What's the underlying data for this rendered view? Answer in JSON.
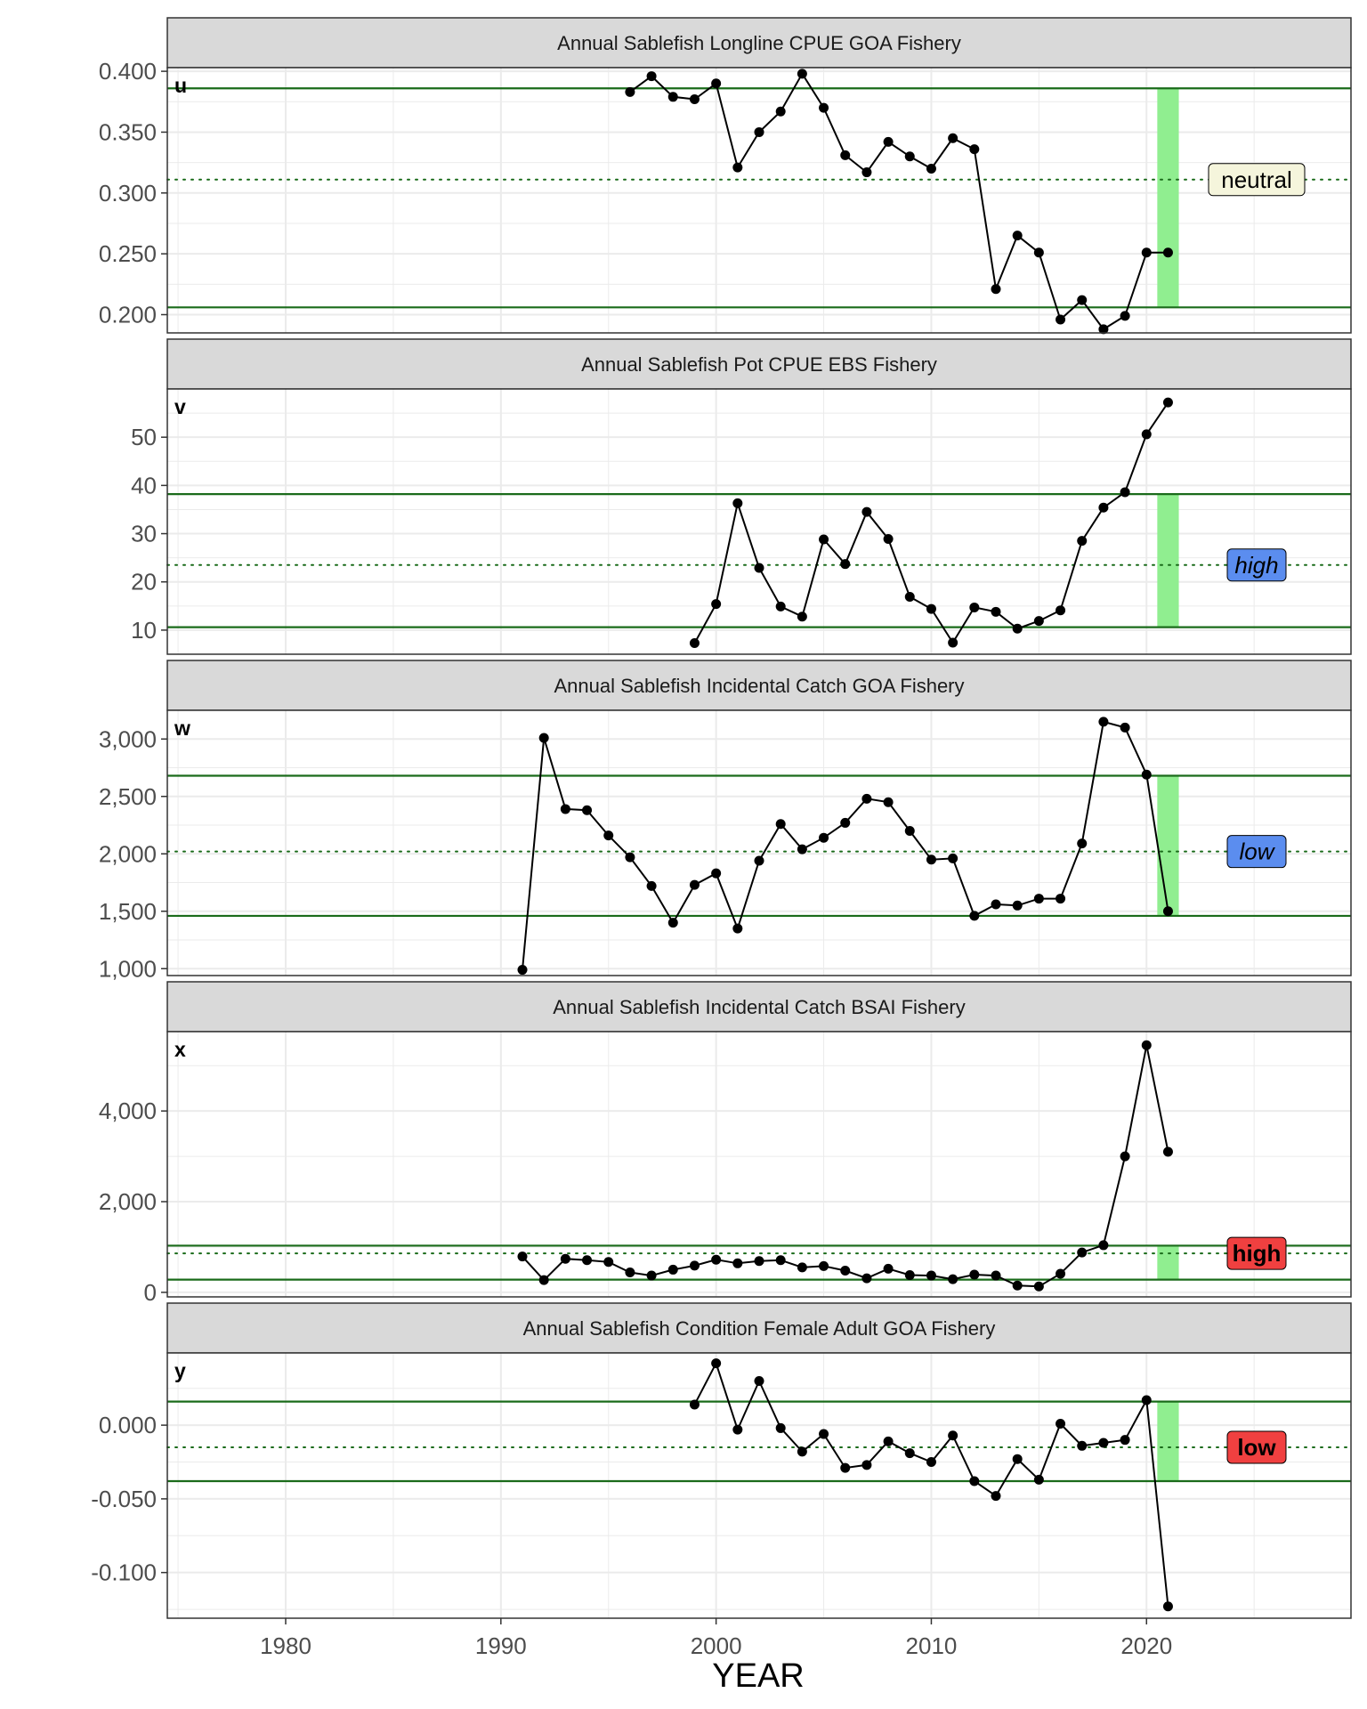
{
  "chart_data": {
    "type": "line",
    "xlabel": "YEAR",
    "xlim": [
      1974.5,
      2029.5
    ],
    "x_ticks": [
      1980,
      1990,
      2000,
      2010,
      2020
    ],
    "highlight_years": [
      2021
    ],
    "colors": {
      "line": "#000000",
      "threshold": "#1a6b1a",
      "highlight": "#90ee90",
      "strip_bg": "#d9d9d9",
      "grid": "#ebebeb",
      "badge_neutral": "#f5f5dc",
      "badge_blue": "#5b8def",
      "badge_red": "#f04040"
    },
    "panels": [
      {
        "tag": "u",
        "title": "Annual Sablefish Longline CPUE GOA Fishery",
        "ylim": [
          0.185,
          0.403
        ],
        "y_ticks": [
          0.2,
          0.25,
          0.3,
          0.35,
          0.4
        ],
        "y_tick_labels": [
          "0.200",
          "0.250",
          "0.300",
          "0.350",
          "0.400"
        ],
        "upper": 0.386,
        "mean": 0.311,
        "lower": 0.206,
        "status": "neutral",
        "status_style": "normal",
        "status_color": "#f5f5dc",
        "x": [
          1996,
          1997,
          1998,
          1999,
          2000,
          2001,
          2002,
          2003,
          2004,
          2005,
          2006,
          2007,
          2008,
          2009,
          2010,
          2011,
          2012,
          2013,
          2014,
          2015,
          2016,
          2017,
          2018,
          2019,
          2020,
          2021
        ],
        "y": [
          0.383,
          0.396,
          0.379,
          0.377,
          0.39,
          0.321,
          0.35,
          0.367,
          0.398,
          0.37,
          0.331,
          0.317,
          0.342,
          0.33,
          0.32,
          0.345,
          0.336,
          0.221,
          0.265,
          0.251,
          0.196,
          0.212,
          0.188,
          0.199,
          0.251,
          0.251
        ]
      },
      {
        "tag": "v",
        "title": "Annual Sablefish Pot CPUE EBS Fishery",
        "ylim": [
          5,
          60
        ],
        "y_ticks": [
          10,
          20,
          30,
          40,
          50
        ],
        "y_tick_labels": [
          "10",
          "20",
          "30",
          "40",
          "50"
        ],
        "upper": 38.2,
        "mean": 23.5,
        "lower": 10.6,
        "status": "high",
        "status_style": "italic",
        "status_color": "#5b8def",
        "x": [
          1999,
          2000,
          2001,
          2002,
          2003,
          2004,
          2005,
          2006,
          2007,
          2008,
          2009,
          2010,
          2011,
          2012,
          2013,
          2014,
          2015,
          2016,
          2017,
          2018,
          2019,
          2020,
          2021
        ],
        "y": [
          7.3,
          15.4,
          36.3,
          22.9,
          14.9,
          12.8,
          28.8,
          23.7,
          34.5,
          28.9,
          16.9,
          14.4,
          7.4,
          14.7,
          13.8,
          10.3,
          11.9,
          14.1,
          28.5,
          35.4,
          38.6,
          50.6,
          57.2
        ]
      },
      {
        "tag": "w",
        "title": "Annual Sablefish Incidental Catch GOA Fishery",
        "ylim": [
          940,
          3250
        ],
        "y_ticks": [
          1000,
          1500,
          2000,
          2500,
          3000
        ],
        "y_tick_labels": [
          "1,000",
          "1,500",
          "2,000",
          "2,500",
          "3,000"
        ],
        "upper": 2680,
        "mean": 2020,
        "lower": 1460,
        "status": "low",
        "status_style": "italic",
        "status_color": "#5b8def",
        "x": [
          1991,
          1992,
          1993,
          1994,
          1995,
          1996,
          1997,
          1998,
          1999,
          2000,
          2001,
          2002,
          2003,
          2004,
          2005,
          2006,
          2007,
          2008,
          2009,
          2010,
          2011,
          2012,
          2013,
          2014,
          2015,
          2016,
          2017,
          2018,
          2019,
          2020,
          2021
        ],
        "y": [
          990,
          3010,
          2390,
          2380,
          2160,
          1970,
          1720,
          1400,
          1730,
          1830,
          1350,
          1940,
          2260,
          2040,
          2140,
          2270,
          2480,
          2450,
          2200,
          1950,
          1960,
          1460,
          1560,
          1550,
          1610,
          1610,
          2090,
          3150,
          3100,
          2690,
          1500
        ]
      },
      {
        "tag": "x",
        "title": "Annual Sablefish Incidental Catch BSAI Fishery",
        "ylim": [
          -100,
          5750
        ],
        "y_ticks": [
          0,
          2000,
          4000
        ],
        "y_tick_labels": [
          "0",
          "2,000",
          "4,000"
        ],
        "upper": 1030,
        "mean": 860,
        "lower": 280,
        "status": "high",
        "status_style": "bold",
        "status_color": "#f04040",
        "x": [
          1991,
          1992,
          1993,
          1994,
          1995,
          1996,
          1997,
          1998,
          1999,
          2000,
          2001,
          2002,
          2003,
          2004,
          2005,
          2006,
          2007,
          2008,
          2009,
          2010,
          2011,
          2012,
          2013,
          2014,
          2015,
          2016,
          2017,
          2018,
          2019,
          2020,
          2021
        ],
        "y": [
          790,
          270,
          740,
          710,
          670,
          440,
          370,
          500,
          590,
          720,
          640,
          690,
          710,
          550,
          580,
          480,
          310,
          520,
          380,
          370,
          290,
          390,
          370,
          150,
          130,
          410,
          880,
          1040,
          3000,
          5450,
          3100
        ]
      },
      {
        "tag": "y",
        "title": "Annual Sablefish Condition Female Adult GOA Fishery",
        "ylim": [
          -0.131,
          0.049
        ],
        "y_ticks": [
          0.0,
          -0.05,
          -0.1
        ],
        "y_tick_labels": [
          "0.000",
          "-0.050",
          "-0.100"
        ],
        "upper": 0.016,
        "mean": -0.015,
        "lower": -0.038,
        "status": "low",
        "status_style": "bold",
        "status_color": "#f04040",
        "x": [
          1999,
          2000,
          2001,
          2002,
          2003,
          2004,
          2005,
          2006,
          2007,
          2008,
          2009,
          2010,
          2011,
          2012,
          2013,
          2014,
          2015,
          2016,
          2017,
          2018,
          2019,
          2020,
          2021
        ],
        "y": [
          0.014,
          0.042,
          -0.003,
          0.03,
          -0.002,
          -0.018,
          -0.006,
          -0.029,
          -0.027,
          -0.011,
          -0.019,
          -0.025,
          -0.007,
          -0.038,
          -0.048,
          -0.023,
          -0.037,
          0.001,
          -0.014,
          -0.012,
          -0.01,
          0.017,
          -0.123
        ]
      }
    ]
  }
}
